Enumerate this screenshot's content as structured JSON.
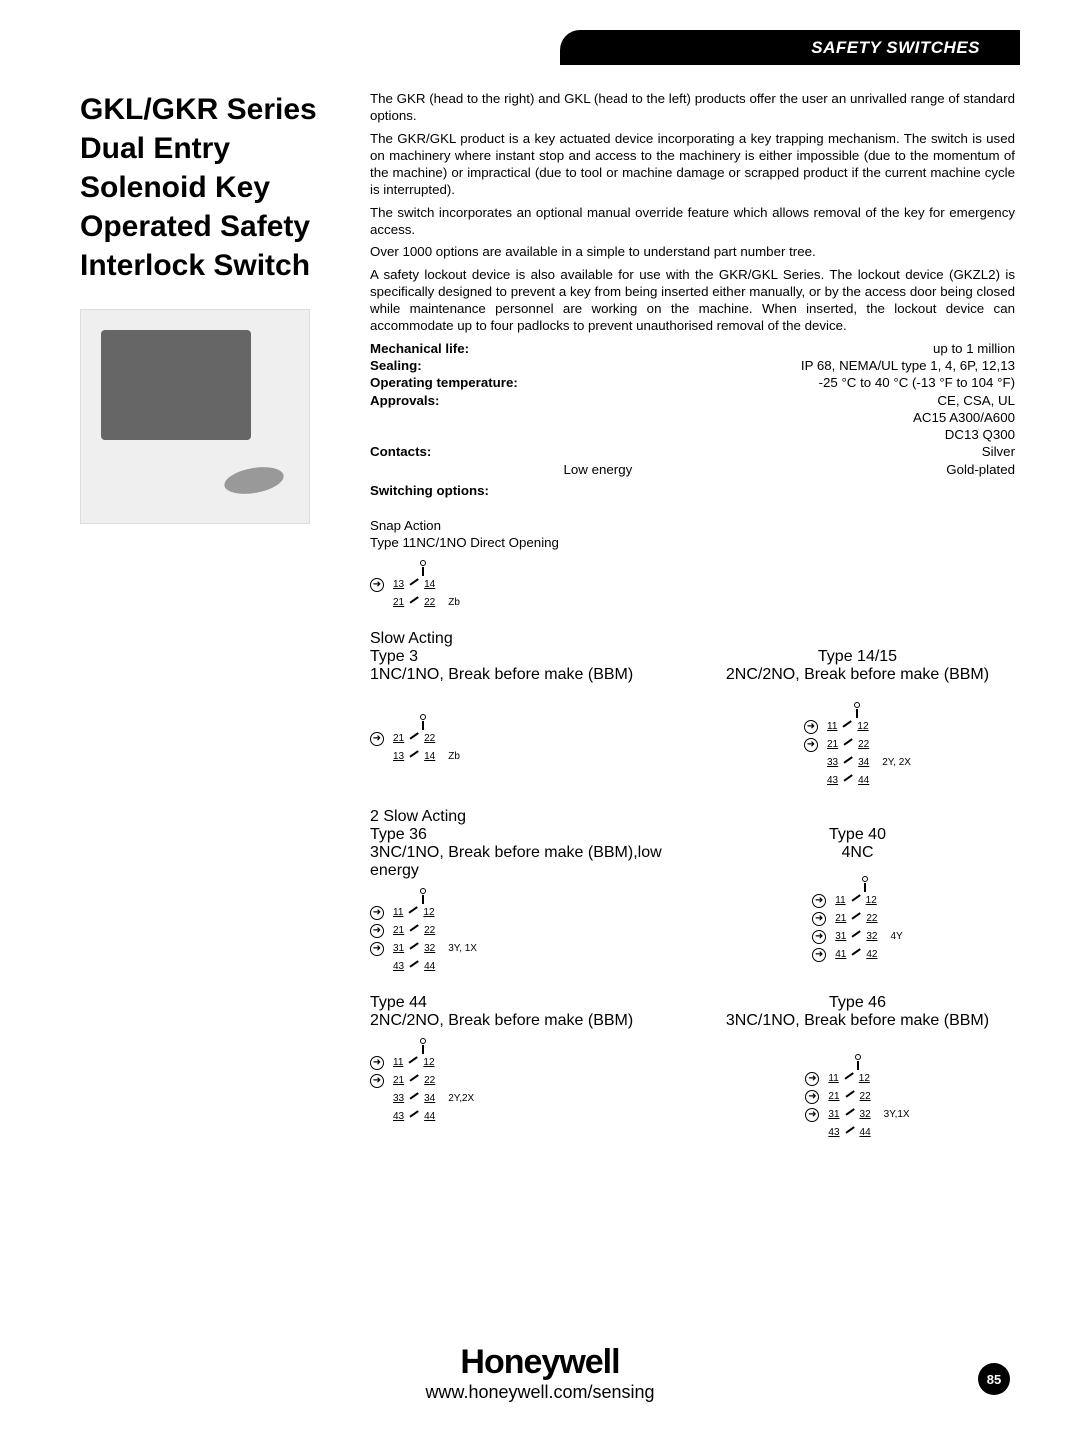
{
  "header": {
    "category": "SAFETY SWITCHES"
  },
  "title": "GKL/GKR Series Dual Entry Solenoid Key Operated Safety Interlock Switch",
  "paragraphs": {
    "p1": "The GKR (head to the right) and GKL (head to the left) products offer the user an unrivalled range of standard options.",
    "p2": "The GKR/GKL product is a key actuated device incorporating a key trapping mechanism.  The switch is used on machinery where instant stop and access to the machinery is either impossible (due to the momentum of the machine) or impractical (due to tool or machine damage or scrapped product if the current machine cycle is interrupted).",
    "p3": "The switch incorporates an optional manual override feature which allows removal of the key for emergency access.",
    "p4": "Over 1000 options are available in a simple to understand part number tree.",
    "p5": "A safety lockout device is also available for use with the GKR/GKL Series.  The lockout device (GKZL2) is specifically designed to prevent a key from being inserted either manually, or by the access door being closed while maintenance personnel are working on the machine. When inserted, the lockout device can accommodate up to four padlocks to prevent unauthorised removal of the device."
  },
  "specs": {
    "mech_life": {
      "label": "Mechanical life:",
      "value": "up to 1 million"
    },
    "sealing": {
      "label": "Sealing:",
      "value": "IP 68, NEMA/UL type 1, 4, 6P, 12,13"
    },
    "op_temp": {
      "label": "Operating temperature:",
      "value": "-25 °C to 40 °C (-13 °F to 104 °F)"
    },
    "approvals": {
      "label": "Approvals:",
      "value": "CE, CSA, UL"
    },
    "approvals2": "AC15 A300/A600",
    "approvals3": "DC13 Q300",
    "contacts": {
      "label": "Contacts:",
      "value": "Silver"
    },
    "contacts2_left": "Low energy",
    "contacts2_right": "Gold-plated",
    "switching_label": "Switching options:"
  },
  "switching": {
    "snap": {
      "line1": "Snap Action",
      "line2": "Type 11NC/1NO Direct Opening",
      "diagram": {
        "rows": [
          [
            "13",
            "14"
          ],
          [
            "21",
            "22"
          ]
        ],
        "suffix": "Zb"
      }
    },
    "pair1": {
      "left": {
        "line1": "Slow Acting",
        "line2": "Type 3",
        "line3": "1NC/1NO, Break before make (BBM)",
        "diagram": {
          "rows": [
            [
              "21",
              "22"
            ],
            [
              "13",
              "14"
            ]
          ],
          "suffix": "Zb"
        }
      },
      "right": {
        "line2": "Type 14/15",
        "line3": "2NC/2NO, Break before make (BBM)",
        "diagram": {
          "rows": [
            [
              "11",
              "12"
            ],
            [
              "21",
              "22"
            ],
            [
              "33",
              "34"
            ],
            [
              "43",
              "44"
            ]
          ],
          "suffix": "2Y, 2X"
        }
      }
    },
    "pair2": {
      "left": {
        "line1": "2 Slow Acting",
        "line2": "Type 36",
        "line3": "3NC/1NO, Break before make (BBM),low energy",
        "diagram": {
          "rows": [
            [
              "11",
              "12"
            ],
            [
              "21",
              "22"
            ],
            [
              "31",
              "32"
            ],
            [
              "43",
              "44"
            ]
          ],
          "suffix": "3Y, 1X"
        }
      },
      "right": {
        "line2": "Type 40",
        "line3": "4NC",
        "diagram": {
          "rows": [
            [
              "11",
              "12"
            ],
            [
              "21",
              "22"
            ],
            [
              "31",
              "32"
            ],
            [
              "41",
              "42"
            ]
          ],
          "suffix": "4Y"
        }
      }
    },
    "pair3": {
      "left": {
        "line2": "Type 44",
        "line3": "2NC/2NO, Break before make (BBM)",
        "diagram": {
          "rows": [
            [
              "11",
              "12"
            ],
            [
              "21",
              "22"
            ],
            [
              "33",
              "34"
            ],
            [
              "43",
              "44"
            ]
          ],
          "suffix": "2Y,2X"
        }
      },
      "right": {
        "line2": "Type 46",
        "line3": "3NC/1NO, Break before make (BBM)",
        "diagram": {
          "rows": [
            [
              "11",
              "12"
            ],
            [
              "21",
              "22"
            ],
            [
              "31",
              "32"
            ],
            [
              "43",
              "44"
            ]
          ],
          "suffix": "3Y,1X"
        }
      }
    }
  },
  "footer": {
    "brand": "Honeywell",
    "url": "www.honeywell.com/sensing",
    "page": "85"
  }
}
